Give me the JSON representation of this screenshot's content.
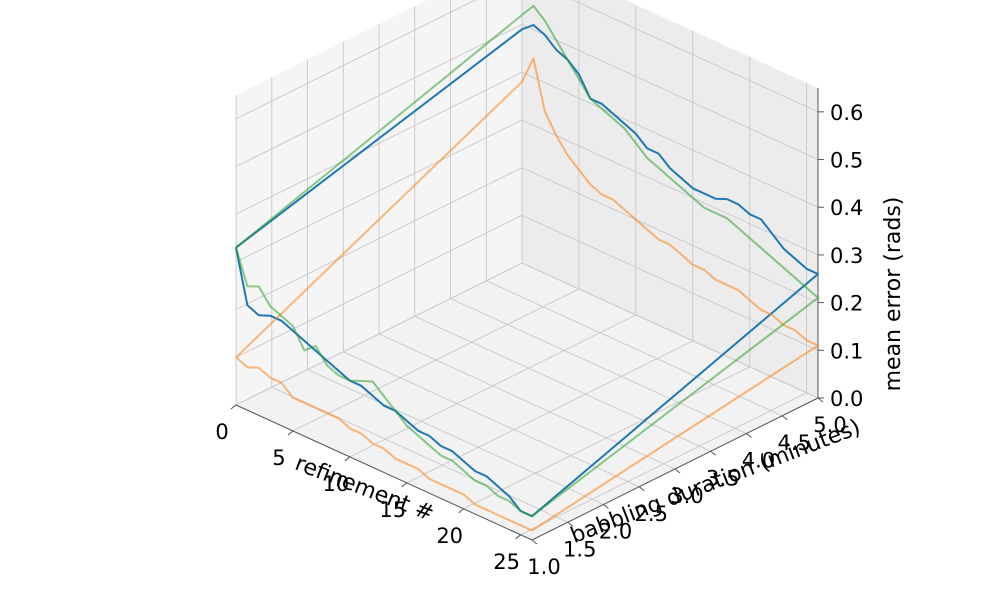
{
  "chart_data": {
    "type": "line",
    "projection": "3d",
    "x": {
      "label": "refinement #",
      "ticks": [
        "0",
        "5",
        "10",
        "15",
        "20",
        "25"
      ],
      "range": [
        0,
        26
      ]
    },
    "y": {
      "label": "babbling duration (minutes)",
      "ticks": [
        "1.0",
        "1.5",
        "2.0",
        "2.5",
        "3.0",
        "3.5",
        "4.0",
        "4.5",
        "5.0"
      ],
      "range": [
        1.0,
        5.0
      ]
    },
    "z": {
      "label": "mean error (rads)",
      "ticks": [
        "0.0",
        "0.1",
        "0.2",
        "0.3",
        "0.4",
        "0.5",
        "0.6"
      ],
      "range": [
        0.0,
        0.65
      ]
    },
    "grid": true,
    "series": [
      {
        "name": "blue",
        "color": "#1f77b4",
        "front": [
          0.33,
          0.22,
          0.21,
          0.22,
          0.22,
          0.21,
          0.2,
          0.19,
          0.18,
          0.17,
          0.16,
          0.16,
          0.15,
          0.14,
          0.14,
          0.13,
          0.12,
          0.12,
          0.11,
          0.11,
          0.1,
          0.09,
          0.09,
          0.08,
          0.07,
          0.05,
          0.05
        ],
        "back": [
          0.49,
          0.51,
          0.5,
          0.48,
          0.47,
          0.45,
          0.41,
          0.41,
          0.4,
          0.39,
          0.38,
          0.36,
          0.36,
          0.34,
          0.33,
          0.32,
          0.32,
          0.32,
          0.33,
          0.33,
          0.32,
          0.32,
          0.3,
          0.28,
          0.27,
          0.26,
          0.26
        ]
      },
      {
        "name": "orange",
        "color": "#ff7f0e",
        "opacity": 0.55,
        "front": [
          0.1,
          0.09,
          0.1,
          0.09,
          0.09,
          0.07,
          0.07,
          0.07,
          0.07,
          0.07,
          0.06,
          0.06,
          0.05,
          0.05,
          0.04,
          0.04,
          0.04,
          0.03,
          0.03,
          0.03,
          0.03,
          0.02,
          0.02,
          0.02,
          0.02,
          0.02,
          0.02
        ],
        "back": [
          0.38,
          0.44,
          0.34,
          0.3,
          0.27,
          0.25,
          0.23,
          0.22,
          0.22,
          0.21,
          0.2,
          0.19,
          0.18,
          0.18,
          0.17,
          0.16,
          0.16,
          0.15,
          0.15,
          0.15,
          0.14,
          0.13,
          0.13,
          0.12,
          0.12,
          0.11,
          0.11
        ]
      },
      {
        "name": "green",
        "color": "#2ca02c",
        "opacity": 0.55,
        "front": [
          0.33,
          0.26,
          0.27,
          0.24,
          0.23,
          0.22,
          0.18,
          0.2,
          0.17,
          0.16,
          0.16,
          0.17,
          0.18,
          0.16,
          0.14,
          0.12,
          0.11,
          0.1,
          0.09,
          0.09,
          0.08,
          0.07,
          0.07,
          0.06,
          0.06,
          0.05,
          0.05
        ],
        "back": [
          0.52,
          0.55,
          0.53,
          0.5,
          0.47,
          0.44,
          0.41,
          0.4,
          0.39,
          0.38,
          0.36,
          0.34,
          0.33,
          0.32,
          0.31,
          0.3,
          0.29,
          0.29,
          0.29,
          0.28,
          0.27,
          0.26,
          0.25,
          0.24,
          0.23,
          0.22,
          0.21
        ]
      }
    ]
  }
}
